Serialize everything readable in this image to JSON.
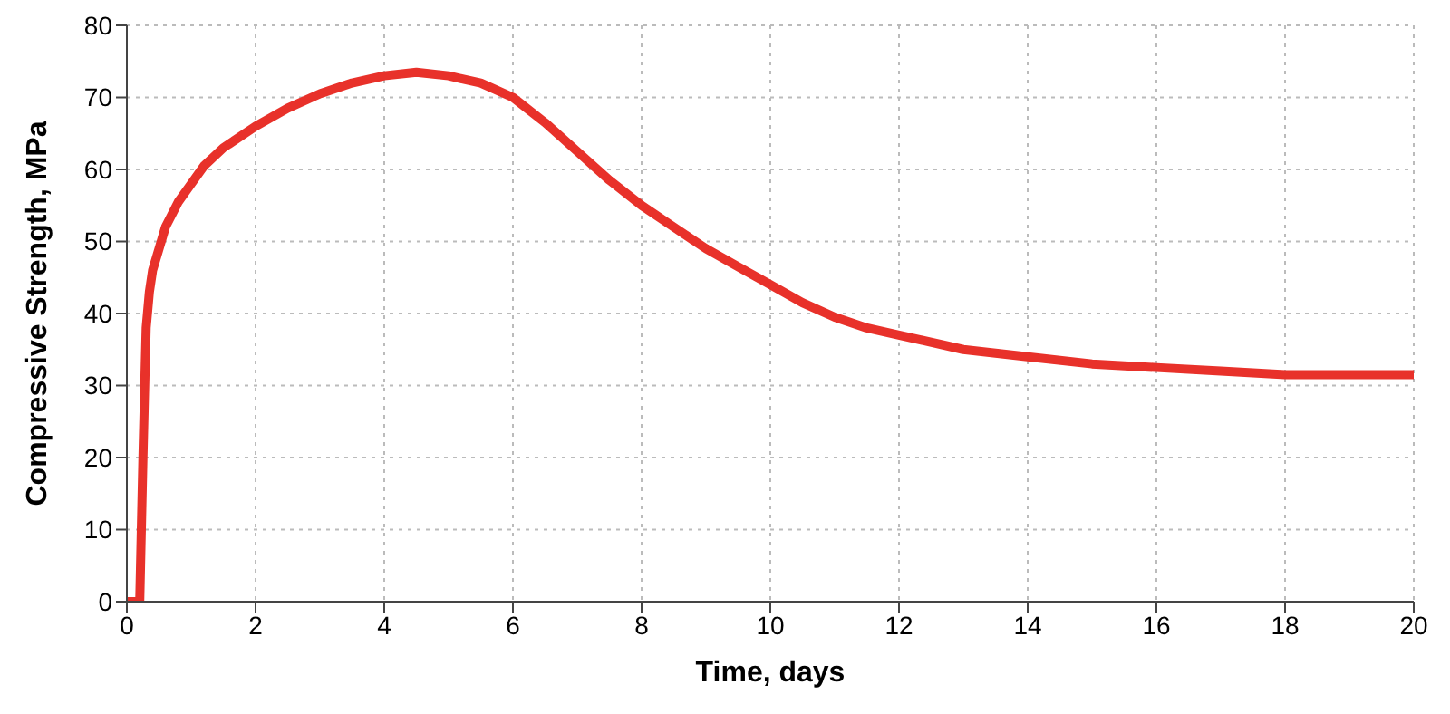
{
  "chart_data": {
    "type": "line",
    "xlabel": "Time, days",
    "ylabel": "Compressive Strength, MPa",
    "x": [
      0,
      0.2,
      0.25,
      0.3,
      0.35,
      0.4,
      0.5,
      0.6,
      0.8,
      1,
      1.2,
      1.5,
      2,
      2.5,
      3,
      3.5,
      4,
      4.5,
      5,
      5.5,
      6,
      6.5,
      7,
      7.5,
      8,
      8.5,
      9,
      9.5,
      10,
      10.5,
      11,
      11.5,
      12,
      13,
      14,
      15,
      16,
      17,
      18,
      19,
      20
    ],
    "series": [
      {
        "color": "#e8312a",
        "values": [
          0,
          0,
          20,
          38,
          43,
          46,
          49,
          52,
          55.5,
          58,
          60.5,
          63,
          66,
          68.5,
          70.5,
          72,
          73,
          73.5,
          73,
          72,
          70,
          66.5,
          62.5,
          58.5,
          55,
          52,
          49,
          46.5,
          44,
          41.5,
          39.5,
          38,
          37,
          35,
          34,
          33,
          32.5,
          32,
          31.5,
          31.5,
          31.5
        ]
      }
    ],
    "xlim": [
      0,
      20
    ],
    "xticks": [
      0,
      2,
      4,
      6,
      8,
      10,
      12,
      14,
      16,
      18,
      20
    ],
    "ylim": [
      0,
      80
    ],
    "yticks": [
      0,
      10,
      20,
      30,
      40,
      50,
      60,
      70,
      80
    ],
    "grid": true,
    "marker": "none",
    "line_style": "solid"
  }
}
